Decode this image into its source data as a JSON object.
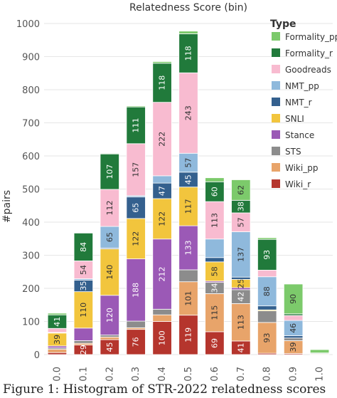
{
  "caption": "Figure 1:  Histogram of STR-2022 relatedness scores",
  "chart_data": {
    "type": "bar",
    "stacked": true,
    "title": "Relatedness Score (bin)",
    "ylabel": "#pairs",
    "xlabel": "",
    "ylim": [
      0,
      1000
    ],
    "yticks": [
      0,
      100,
      200,
      300,
      400,
      500,
      600,
      700,
      800,
      900,
      1000
    ],
    "grid": true,
    "legend_title": "Type",
    "legend_position": "right",
    "categories": [
      "0.0",
      "0.1",
      "0.2",
      "0.3",
      "0.4",
      "0.5",
      "0.6",
      "0.7",
      "0.8",
      "0.9",
      "1.0"
    ],
    "series": [
      {
        "name": "Wiki_r",
        "color": "#b5352d",
        "values": [
          6,
          29,
          45,
          76,
          100,
          119,
          69,
          41,
          4,
          3,
          0
        ]
      },
      {
        "name": "Wiki_pp",
        "color": "#e8a46a",
        "values": [
          10,
          5,
          8,
          5,
          20,
          101,
          115,
          113,
          93,
          39,
          2
        ]
      },
      {
        "name": "STS",
        "color": "#8c8c8c",
        "values": [
          4,
          8,
          6,
          20,
          17,
          36,
          34,
          42,
          35,
          8,
          1
        ]
      },
      {
        "name": "Stance",
        "color": "#9b59b6",
        "values": [
          6,
          38,
          120,
          188,
          212,
          133,
          4,
          6,
          0,
          0,
          0
        ]
      },
      {
        "name": "SNLI",
        "color": "#f2c53d",
        "values": [
          39,
          110,
          140,
          122,
          122,
          117,
          58,
          25,
          3,
          0,
          0
        ]
      },
      {
        "name": "NMT_r",
        "color": "#34608e",
        "values": [
          1,
          35,
          3,
          65,
          47,
          45,
          13,
          7,
          12,
          7,
          0
        ]
      },
      {
        "name": "NMT_pp",
        "color": "#8fb9dc",
        "values": [
          1,
          4,
          65,
          4,
          22,
          57,
          56,
          137,
          88,
          46,
          0
        ]
      },
      {
        "name": "Goodreads",
        "color": "#f8bbd0",
        "values": [
          12,
          54,
          112,
          157,
          222,
          243,
          113,
          57,
          20,
          15,
          0
        ]
      },
      {
        "name": "Formality_r",
        "color": "#217a3b",
        "values": [
          41,
          84,
          107,
          111,
          118,
          118,
          60,
          38,
          93,
          5,
          2
        ]
      },
      {
        "name": "Formality_pp",
        "color": "#7cca6b",
        "values": [
          5,
          0,
          2,
          3,
          5,
          8,
          12,
          62,
          5,
          90,
          10
        ]
      }
    ],
    "data_labels": {
      "Wiki_r": [
        "",
        "29",
        "45",
        "76",
        "100",
        "119",
        "69",
        "41",
        "",
        "",
        ""
      ],
      "Wiki_pp": [
        "",
        "",
        "",
        "",
        "",
        "101",
        "115",
        "113",
        "93",
        "39",
        ""
      ],
      "STS": [
        "",
        "",
        "",
        "",
        "",
        "",
        "34",
        "42",
        "",
        "",
        ""
      ],
      "Stance": [
        "",
        "",
        "120",
        "188",
        "212",
        "133",
        "",
        "",
        "",
        "",
        ""
      ],
      "SNLI": [
        "39",
        "110",
        "140",
        "122",
        "122",
        "117",
        "58",
        "25",
        "",
        "",
        ""
      ],
      "NMT_r": [
        "",
        "35",
        "",
        "65",
        "47",
        "45",
        "",
        "",
        "",
        "",
        ""
      ],
      "NMT_pp": [
        "",
        "",
        "65",
        "",
        "",
        "57",
        "",
        "137",
        "88",
        "46",
        ""
      ],
      "Goodreads": [
        "",
        "54",
        "112",
        "157",
        "222",
        "243",
        "113",
        "57",
        "",
        "",
        ""
      ],
      "Formality_r": [
        "41",
        "84",
        "107",
        "111",
        "118",
        "118",
        "60",
        "38",
        "93",
        "",
        ""
      ],
      "Formality_pp": [
        "",
        "",
        "",
        "",
        "",
        "",
        "",
        "62",
        "",
        "90",
        ""
      ]
    }
  }
}
